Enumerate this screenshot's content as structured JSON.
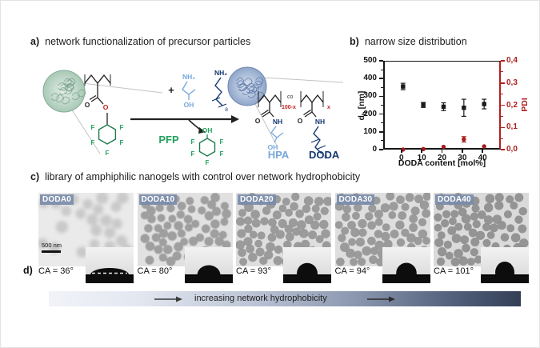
{
  "figure": {
    "headings": {
      "a_prefix": "a)",
      "a_text": "network functionalization of precursor particles",
      "b_prefix": "b)",
      "b_text": "narrow size distribution",
      "c_prefix": "c)",
      "c_text": "library of amphiphilic nanogels with control over network hydrophobicity",
      "d_prefix": "d)"
    },
    "panel_a_labels": {
      "plus": "+",
      "nh2": "NH₂",
      "oh": "OH",
      "o": "O",
      "nh": "NH",
      "f": "F",
      "co": "co",
      "hundred_x": "100-x",
      "x": "x",
      "eight": "8",
      "pfp": "PFP",
      "hpa": "HPA",
      "doda": "DODA"
    },
    "colors": {
      "green": "#22a15d",
      "light_blue": "#77a8da",
      "dark_blue": "#14386f",
      "red": "#c22020",
      "axis_red": "#b02020",
      "bar_dark": "#343f56"
    },
    "tem_panels": [
      {
        "label": "DODA0",
        "ca_label": "CA = 36°",
        "ca_deg": 36,
        "particles": 26,
        "blur": 2.2,
        "bg": "#eaeaea",
        "dot": "#c0c0c0",
        "scalebar": "500 nm"
      },
      {
        "label": "DODA10",
        "ca_label": "CA = 80°",
        "ca_deg": 80,
        "particles": 62,
        "blur": 0.5,
        "bg": "#e1e1e1",
        "dot": "#9b9b9b"
      },
      {
        "label": "DODA20",
        "ca_label": "CA = 93°",
        "ca_deg": 93,
        "particles": 118,
        "blur": 0.3,
        "bg": "#dedede",
        "dot": "#979797"
      },
      {
        "label": "DODA30",
        "ca_label": "CA = 94°",
        "ca_deg": 94,
        "particles": 104,
        "blur": 0.3,
        "bg": "#dedede",
        "dot": "#979797"
      },
      {
        "label": "DODA40",
        "ca_label": "CA = 101°",
        "ca_deg": 101,
        "particles": 138,
        "blur": 0.2,
        "bg": "#dadada",
        "dot": "#909090"
      }
    ],
    "gradient_bar": {
      "text": "increasing network hydrophobicity"
    }
  },
  "chart_data": {
    "type": "scatter",
    "x": [
      0,
      10,
      20,
      30,
      40
    ],
    "series": [
      {
        "name": "dh",
        "axis": "left",
        "marker": "square",
        "color": "#1a1a1a",
        "values": [
          360,
          256,
          246,
          240,
          261
        ],
        "errors": [
          18,
          14,
          22,
          48,
          27
        ]
      },
      {
        "name": "PDI",
        "axis": "right",
        "marker": "circle",
        "color": "#a61c1c",
        "values": [
          0.004,
          0.006,
          0.016,
          0.05,
          0.018
        ],
        "errors": [
          0,
          0,
          0,
          0.012,
          0
        ]
      }
    ],
    "x_axis": {
      "label": "DODA content [mol%]",
      "ticks": [
        0,
        10,
        20,
        30,
        40
      ],
      "range": [
        -9,
        49
      ]
    },
    "left_axis": {
      "label_main": "d",
      "label_sub": "h",
      "label_unit": " [nm]",
      "ticks": [
        0,
        100,
        200,
        300,
        400,
        500
      ],
      "range": [
        0,
        500
      ]
    },
    "right_axis": {
      "label": "PDI",
      "ticks": [
        "0,0",
        "0,1",
        "0,2",
        "0,3",
        "0,4"
      ],
      "tick_values": [
        0,
        0.1,
        0.2,
        0.3,
        0.4
      ],
      "range": [
        0,
        0.4
      ]
    },
    "grid": false,
    "legend": "none"
  }
}
